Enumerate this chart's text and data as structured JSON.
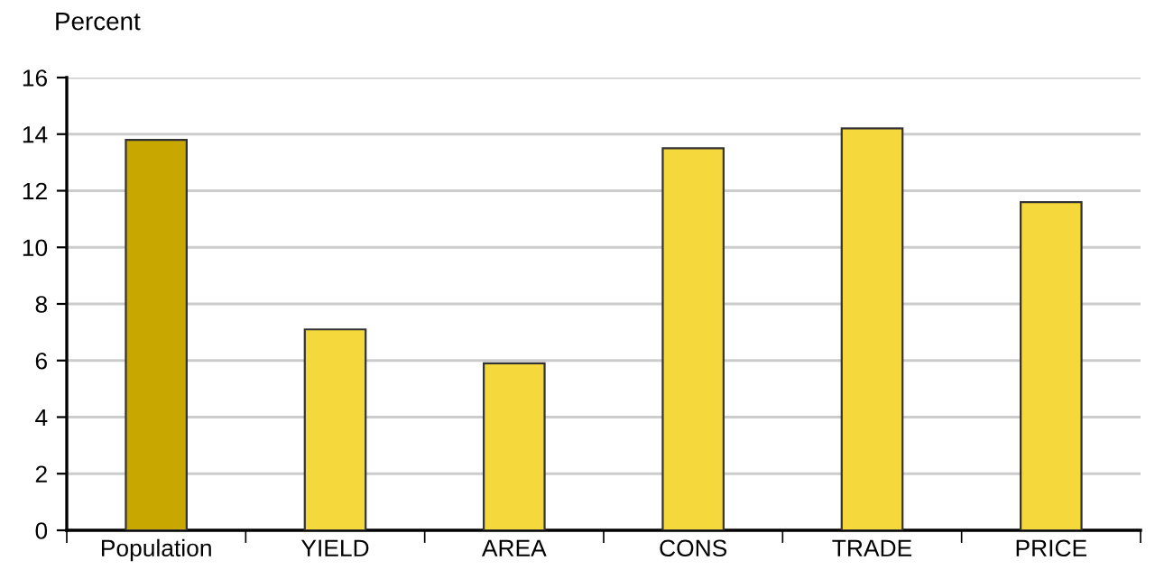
{
  "chart_data": {
    "type": "bar",
    "ylabel": "Percent",
    "categories": [
      "Population",
      "YIELD",
      "AREA",
      "CONS",
      "TRADE",
      "PRICE"
    ],
    "values": [
      13.8,
      7.1,
      5.9,
      13.5,
      14.2,
      11.6
    ],
    "colors": [
      "#c8a800",
      "#f5d83c",
      "#f5d83c",
      "#f5d83c",
      "#f5d83c",
      "#f5d83c"
    ],
    "ylim": [
      0,
      16
    ],
    "yticks": [
      0,
      2,
      4,
      6,
      8,
      10,
      12,
      14,
      16
    ],
    "grid": "y",
    "legend": false
  }
}
